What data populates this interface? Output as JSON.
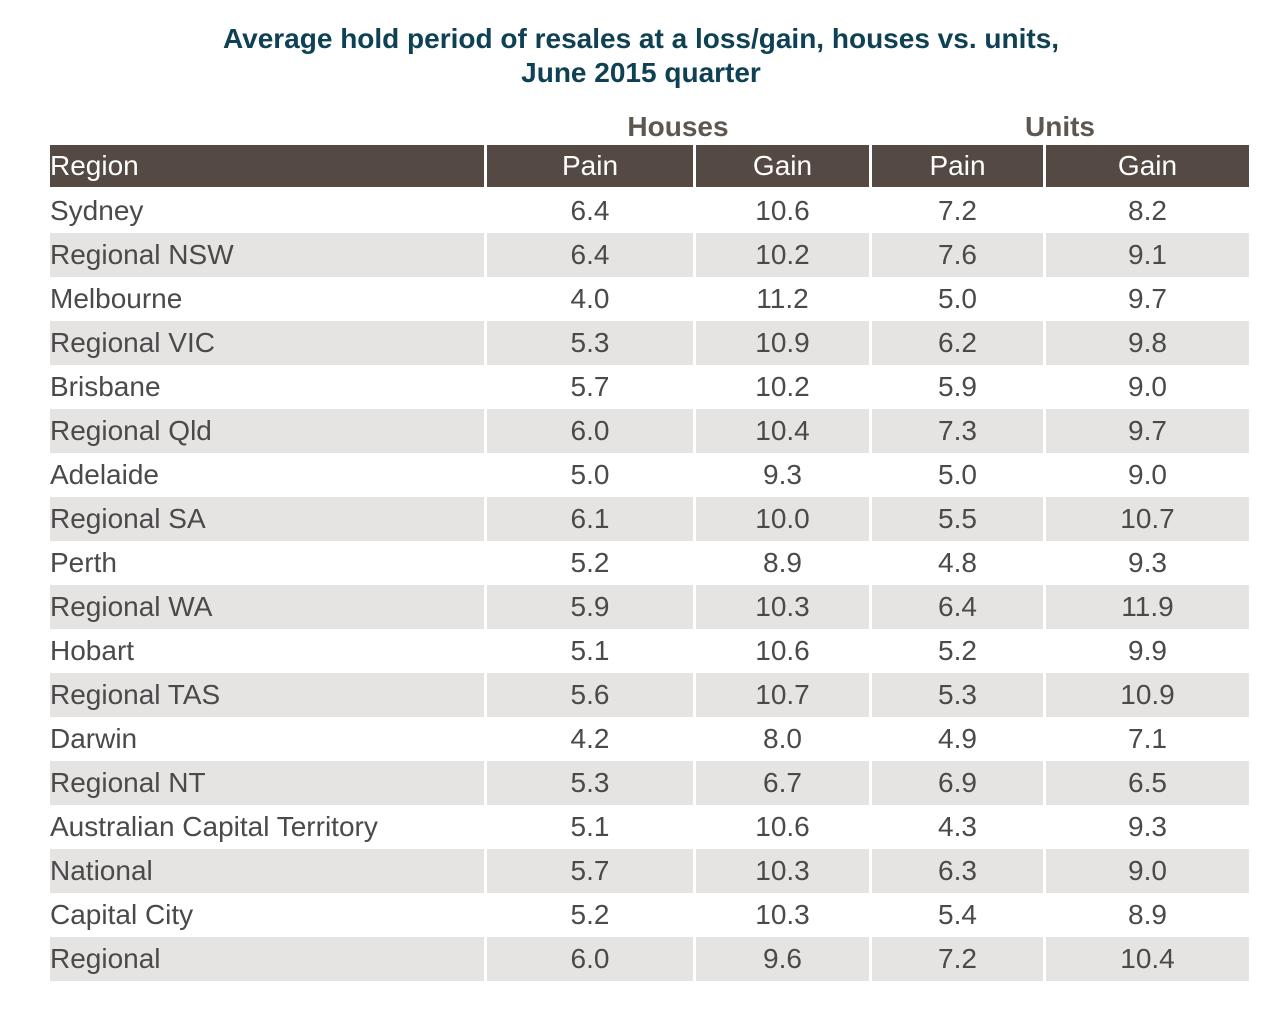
{
  "chart_data": {
    "type": "table",
    "title_lines": [
      "Average hold period of resales at a loss/gain, houses vs. units,",
      "June 2015 quarter"
    ],
    "group_headers": {
      "houses": "Houses",
      "units": "Units"
    },
    "columns": [
      "Region",
      "Pain",
      "Gain",
      "Pain",
      "Gain"
    ],
    "colors": {
      "title": "#0f4154",
      "header_bg": "#544a43",
      "pain_text": "#d22e2e",
      "row_alt_bg": "#e6e4e3"
    },
    "rows": [
      {
        "region": "Sydney",
        "houses_pain": "6.4",
        "houses_gain": "10.6",
        "units_pain": "7.2",
        "units_gain": "8.2"
      },
      {
        "region": "Regional NSW",
        "houses_pain": "6.4",
        "houses_gain": "10.2",
        "units_pain": "7.6",
        "units_gain": "9.1"
      },
      {
        "region": "Melbourne",
        "houses_pain": "4.0",
        "houses_gain": "11.2",
        "units_pain": "5.0",
        "units_gain": "9.7"
      },
      {
        "region": "Regional VIC",
        "houses_pain": "5.3",
        "houses_gain": "10.9",
        "units_pain": "6.2",
        "units_gain": "9.8"
      },
      {
        "region": "Brisbane",
        "houses_pain": "5.7",
        "houses_gain": "10.2",
        "units_pain": "5.9",
        "units_gain": "9.0"
      },
      {
        "region": "Regional Qld",
        "houses_pain": "6.0",
        "houses_gain": "10.4",
        "units_pain": "7.3",
        "units_gain": "9.7"
      },
      {
        "region": "Adelaide",
        "houses_pain": "5.0",
        "houses_gain": "9.3",
        "units_pain": "5.0",
        "units_gain": "9.0"
      },
      {
        "region": "Regional SA",
        "houses_pain": "6.1",
        "houses_gain": "10.0",
        "units_pain": "5.5",
        "units_gain": "10.7"
      },
      {
        "region": "Perth",
        "houses_pain": "5.2",
        "houses_gain": "8.9",
        "units_pain": "4.8",
        "units_gain": "9.3"
      },
      {
        "region": "Regional WA",
        "houses_pain": "5.9",
        "houses_gain": "10.3",
        "units_pain": "6.4",
        "units_gain": "11.9"
      },
      {
        "region": "Hobart",
        "houses_pain": "5.1",
        "houses_gain": "10.6",
        "units_pain": "5.2",
        "units_gain": "9.9"
      },
      {
        "region": "Regional TAS",
        "houses_pain": "5.6",
        "houses_gain": "10.7",
        "units_pain": "5.3",
        "units_gain": "10.9"
      },
      {
        "region": "Darwin",
        "houses_pain": "4.2",
        "houses_gain": "8.0",
        "units_pain": "4.9",
        "units_gain": "7.1"
      },
      {
        "region": "Regional NT",
        "houses_pain": "5.3",
        "houses_gain": "6.7",
        "units_pain": "6.9",
        "units_gain": "6.5"
      },
      {
        "region": "Australian Capital Territory",
        "houses_pain": "5.1",
        "houses_gain": "10.6",
        "units_pain": "4.3",
        "units_gain": "9.3"
      },
      {
        "region": "National",
        "houses_pain": "5.7",
        "houses_gain": "10.3",
        "units_pain": "6.3",
        "units_gain": "9.0"
      },
      {
        "region": "Capital City",
        "houses_pain": "5.2",
        "houses_gain": "10.3",
        "units_pain": "5.4",
        "units_gain": "8.9"
      },
      {
        "region": "Regional",
        "houses_pain": "6.0",
        "houses_gain": "9.6",
        "units_pain": "7.2",
        "units_gain": "10.4"
      }
    ]
  }
}
